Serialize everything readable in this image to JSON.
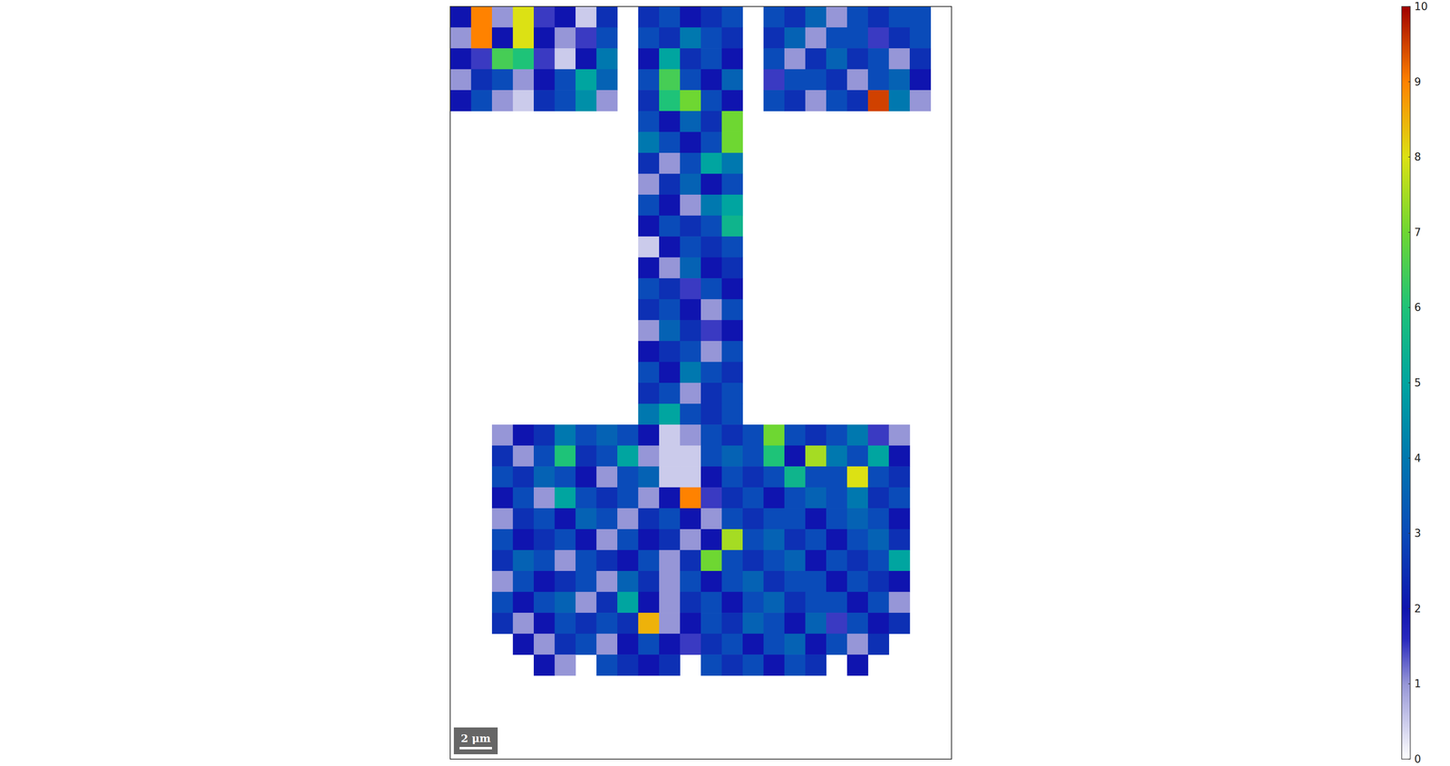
{
  "chart_data": {
    "type": "heatmap",
    "scale_bar": "2 μm",
    "colorbar_range": [
      0,
      10
    ],
    "colorbar_ticks": [
      0,
      1,
      2,
      3,
      4,
      5,
      6,
      7,
      8,
      9,
      10
    ],
    "cells": [
      [
        2,
        9,
        1,
        8,
        1.5,
        2,
        0.5,
        2.5,
        null,
        2.5,
        3,
        2,
        2.5,
        3,
        null,
        3,
        2.5,
        3.5,
        1,
        3,
        2.5,
        3,
        3,
        null
      ],
      [
        1,
        9,
        2,
        8,
        2,
        1,
        1.5,
        3,
        null,
        3,
        2.5,
        4,
        3,
        2.5,
        null,
        2.5,
        3.5,
        1,
        3,
        3,
        1.5,
        2.5,
        3,
        null
      ],
      [
        2,
        1.5,
        6.5,
        6,
        1.5,
        0.5,
        2,
        4,
        null,
        2,
        5,
        2.5,
        3,
        2,
        null,
        3,
        1,
        2.5,
        3.5,
        2.5,
        3,
        1,
        2.5,
        null
      ],
      [
        1,
        2.5,
        3,
        1,
        2,
        3,
        5,
        3.5,
        null,
        3,
        6.5,
        3,
        2,
        3.5,
        null,
        1.5,
        3,
        3,
        2.5,
        1,
        3,
        3.5,
        2,
        null
      ],
      [
        2,
        3,
        1,
        0.5,
        2.5,
        3,
        4.5,
        1,
        null,
        2.5,
        6,
        7,
        3,
        2,
        null,
        3,
        2.5,
        1,
        3,
        2.5,
        9.5,
        4,
        1,
        null
      ],
      [
        null,
        null,
        null,
        null,
        null,
        null,
        null,
        null,
        null,
        3,
        2,
        3.5,
        2.5,
        7,
        null,
        null,
        null,
        null,
        null,
        null,
        null,
        null,
        null,
        null
      ],
      [
        null,
        null,
        null,
        null,
        null,
        null,
        null,
        null,
        null,
        4,
        3,
        2,
        3,
        7,
        null,
        null,
        null,
        null,
        null,
        null,
        null,
        null,
        null,
        null
      ],
      [
        null,
        null,
        null,
        null,
        null,
        null,
        null,
        null,
        null,
        2.5,
        1,
        3,
        5,
        4,
        null,
        null,
        null,
        null,
        null,
        null,
        null,
        null,
        null,
        null
      ],
      [
        null,
        null,
        null,
        null,
        null,
        null,
        null,
        null,
        null,
        1,
        2.5,
        3.5,
        2,
        3,
        null,
        null,
        null,
        null,
        null,
        null,
        null,
        null,
        null,
        null
      ],
      [
        null,
        null,
        null,
        null,
        null,
        null,
        null,
        null,
        null,
        3,
        2,
        1,
        4,
        5,
        null,
        null,
        null,
        null,
        null,
        null,
        null,
        null,
        null,
        null
      ],
      [
        null,
        null,
        null,
        null,
        null,
        null,
        null,
        null,
        null,
        2,
        3,
        2.5,
        3,
        5.5,
        null,
        null,
        null,
        null,
        null,
        null,
        null,
        null,
        null,
        null
      ],
      [
        null,
        null,
        null,
        null,
        null,
        null,
        null,
        null,
        null,
        0.5,
        2,
        3,
        2.5,
        3,
        null,
        null,
        null,
        null,
        null,
        null,
        null,
        null,
        null,
        null
      ],
      [
        null,
        null,
        null,
        null,
        null,
        null,
        null,
        null,
        null,
        2,
        1,
        3.5,
        2,
        2.5,
        null,
        null,
        null,
        null,
        null,
        null,
        null,
        null,
        null,
        null
      ],
      [
        null,
        null,
        null,
        null,
        null,
        null,
        null,
        null,
        null,
        3,
        2.5,
        1.5,
        3,
        2,
        null,
        null,
        null,
        null,
        null,
        null,
        null,
        null,
        null,
        null
      ],
      [
        null,
        null,
        null,
        null,
        null,
        null,
        null,
        null,
        null,
        2.5,
        3,
        2,
        1,
        3,
        null,
        null,
        null,
        null,
        null,
        null,
        null,
        null,
        null,
        null
      ],
      [
        null,
        null,
        null,
        null,
        null,
        null,
        null,
        null,
        null,
        1,
        3.5,
        2.5,
        1.5,
        2,
        null,
        null,
        null,
        null,
        null,
        null,
        null,
        null,
        null,
        null
      ],
      [
        null,
        null,
        null,
        null,
        null,
        null,
        null,
        null,
        null,
        2,
        2.5,
        3,
        1,
        3,
        null,
        null,
        null,
        null,
        null,
        null,
        null,
        null,
        null,
        null
      ],
      [
        null,
        null,
        null,
        null,
        null,
        null,
        null,
        null,
        null,
        3,
        2,
        4,
        3,
        2.5,
        null,
        null,
        null,
        null,
        null,
        null,
        null,
        null,
        null,
        null
      ],
      [
        null,
        null,
        null,
        null,
        null,
        null,
        null,
        null,
        null,
        2.5,
        3,
        1,
        2.5,
        3,
        null,
        null,
        null,
        null,
        null,
        null,
        null,
        null,
        null,
        null
      ],
      [
        null,
        null,
        null,
        null,
        null,
        null,
        null,
        null,
        null,
        4,
        5,
        3,
        2.5,
        3,
        null,
        null,
        null,
        null,
        null,
        null,
        null,
        null,
        null,
        null
      ],
      [
        null,
        null,
        1,
        2,
        2.5,
        4,
        3,
        3.5,
        3,
        2,
        0.5,
        1,
        3,
        2.5,
        3,
        7,
        3,
        2.5,
        3,
        4,
        1.5,
        1,
        null,
        null
      ],
      [
        null,
        null,
        2.5,
        1,
        3,
        6,
        2.5,
        3,
        5,
        1,
        0.5,
        0.5,
        3,
        3.5,
        3,
        6,
        2,
        7.5,
        4,
        3,
        5,
        2,
        null,
        null
      ],
      [
        null,
        null,
        3,
        2.5,
        3.5,
        3,
        2,
        1,
        3,
        3.5,
        0.5,
        0.5,
        2,
        3,
        2.5,
        3,
        5.5,
        3,
        3,
        8,
        3,
        2.5,
        null,
        null
      ],
      [
        null,
        null,
        2,
        3,
        1,
        5,
        3,
        2.5,
        3,
        1,
        2,
        9,
        1.5,
        2.5,
        3,
        2,
        3,
        3.5,
        3,
        4,
        2.5,
        3,
        null,
        null
      ],
      [
        null,
        null,
        1,
        2.5,
        3,
        2,
        3.5,
        3,
        1,
        2.5,
        3,
        2,
        1,
        3,
        2.5,
        3,
        3,
        2,
        3,
        3.5,
        3,
        2,
        null,
        null
      ],
      [
        null,
        null,
        3,
        2,
        2.5,
        3,
        2,
        1,
        3,
        2,
        2.5,
        1,
        2,
        7.5,
        3,
        3.5,
        2.5,
        3,
        2,
        3,
        3.5,
        2.5,
        null,
        null
      ],
      [
        null,
        null,
        2.5,
        3.5,
        3,
        1,
        3,
        2.5,
        2,
        3,
        1,
        2.5,
        7,
        3,
        2.5,
        3,
        3.5,
        2,
        3,
        2.5,
        3,
        5,
        null,
        null
      ],
      [
        null,
        null,
        1,
        3,
        2,
        2.5,
        3,
        1,
        3.5,
        2.5,
        1,
        3,
        2,
        3,
        3.5,
        2.5,
        3,
        3,
        2,
        3,
        2.5,
        2,
        null,
        null
      ],
      [
        null,
        null,
        3,
        2,
        3,
        3.5,
        1,
        2.5,
        5,
        2,
        1,
        2.5,
        3,
        2,
        3,
        3.5,
        2.5,
        3,
        3,
        2,
        3,
        1,
        null,
        null
      ],
      [
        null,
        null,
        2.5,
        1,
        2,
        3,
        2.5,
        3,
        2.5,
        8.5,
        1,
        2,
        3,
        2.5,
        3.5,
        3,
        2,
        3.5,
        1.5,
        3,
        2,
        2.5,
        null,
        null
      ],
      [
        null,
        null,
        null,
        2,
        1,
        2.5,
        3,
        1,
        2,
        3,
        2,
        1.5,
        2.5,
        3,
        2,
        3,
        3.5,
        2,
        3,
        1,
        2.5,
        null,
        null,
        null
      ],
      [
        null,
        null,
        null,
        null,
        2,
        1,
        null,
        3,
        2.5,
        2,
        2.5,
        null,
        3,
        2.5,
        3,
        2,
        3,
        2.5,
        null,
        2,
        null,
        null,
        null,
        null
      ],
      [
        null,
        null,
        null,
        null,
        null,
        null,
        null,
        null,
        null,
        null,
        null,
        null,
        null,
        null,
        null,
        null,
        null,
        null,
        null,
        null,
        null,
        null,
        null,
        null
      ],
      [
        null,
        null,
        null,
        null,
        null,
        null,
        null,
        null,
        null,
        null,
        null,
        null,
        null,
        null,
        null,
        null,
        null,
        null,
        null,
        null,
        null,
        null,
        null,
        null
      ],
      [
        null,
        null,
        null,
        null,
        null,
        null,
        null,
        null,
        null,
        null,
        null,
        null,
        null,
        null,
        null,
        null,
        null,
        null,
        null,
        null,
        null,
        null,
        null,
        null
      ],
      [
        null,
        null,
        null,
        null,
        null,
        null,
        null,
        null,
        null,
        null,
        null,
        null,
        null,
        null,
        null,
        null,
        null,
        null,
        null,
        null,
        null,
        null,
        null,
        null
      ]
    ]
  }
}
